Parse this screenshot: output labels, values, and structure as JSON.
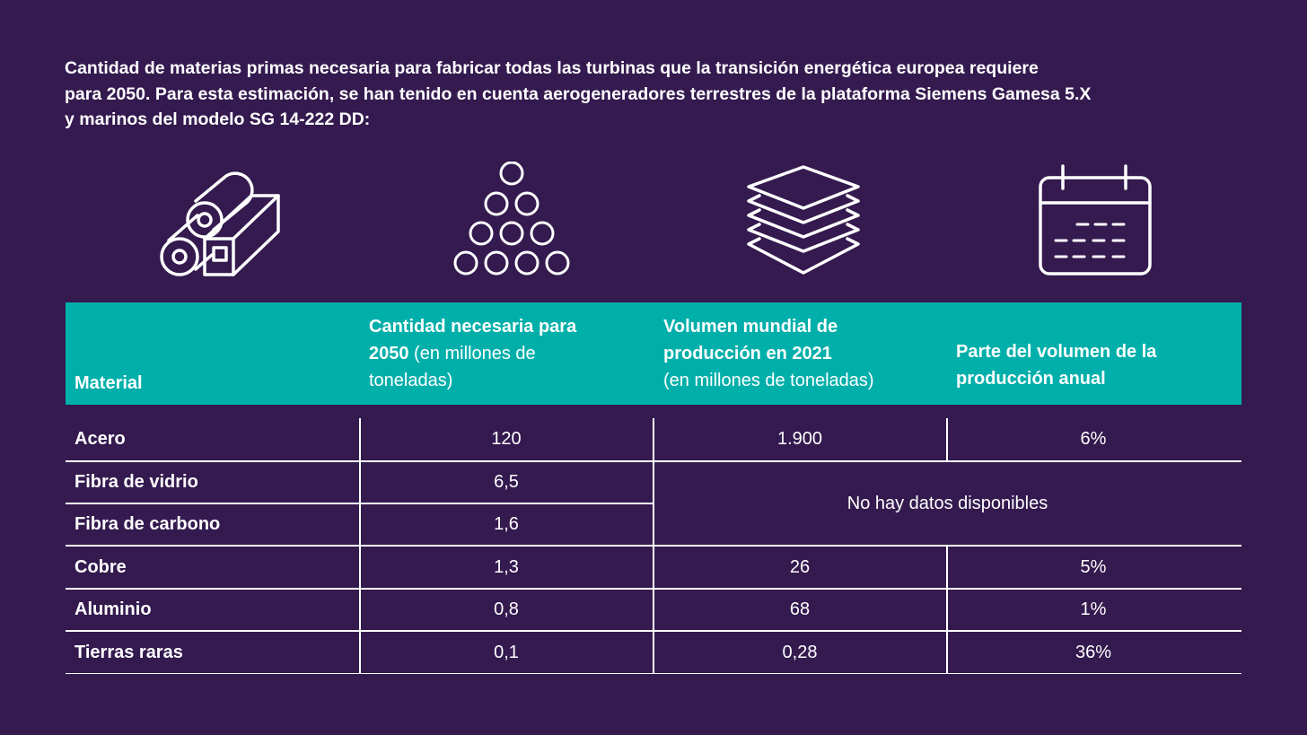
{
  "intro": {
    "line1": "Cantidad de materias primas necesaria para fabricar todas las turbinas que la transición energética europea requiere",
    "line2": "para 2050. Para esta estimación, se han tenido en cuenta aerogeneradores terrestres de la plataforma Siemens Gamesa 5.X",
    "line3": "y marinos del modelo SG 14-222 DD:"
  },
  "icons": [
    "steel-materials-icon",
    "stacked-circles-icon",
    "stacked-layers-icon",
    "calendar-icon"
  ],
  "header": {
    "material": "Material",
    "quantity_bold_1": "Cantidad necesaria para",
    "quantity_bold_2": "2050",
    "quantity_normal_2": " (en millones de",
    "quantity_normal_3": "toneladas)",
    "volume_bold_1": "Volumen mundial de",
    "volume_bold_2": "producción en 2021",
    "volume_normal_3": "(en millones de toneladas)",
    "share_bold_1": "Parte del volumen de la",
    "share_bold_2": "producción anual"
  },
  "rows": [
    {
      "material": "Acero",
      "quantity": "120",
      "volume": "1.900",
      "share": "6%"
    },
    {
      "material": "Fibra de vidrio",
      "quantity": "6,5"
    },
    {
      "material": "Fibra de carbono",
      "quantity": "1,6"
    },
    {
      "material": "Cobre",
      "quantity": "1,3",
      "volume": "26",
      "share": "5%"
    },
    {
      "material": "Aluminio",
      "quantity": "0,8",
      "volume": "68",
      "share": "1%"
    },
    {
      "material": "Tierras raras",
      "quantity": "0,1",
      "volume": "0,28",
      "share": "36%"
    }
  ],
  "no_data": "No hay datos disponibles",
  "colors": {
    "background": "#341a4f",
    "header": "#00afaa",
    "text": "#ffffff"
  }
}
